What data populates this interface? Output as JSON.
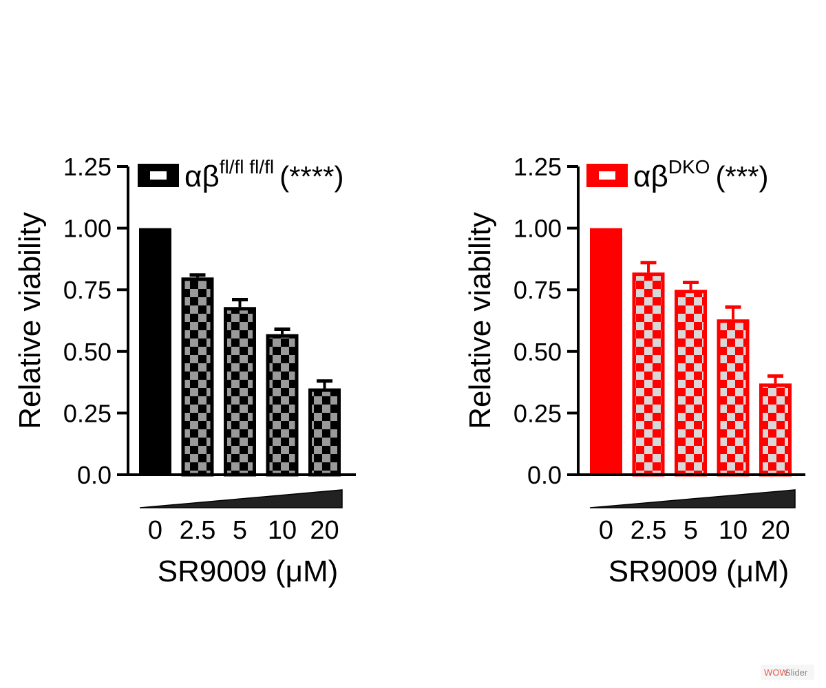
{
  "chart_data": [
    {
      "type": "bar",
      "legend": {
        "symbol": "αβ",
        "superscript": "fl/fl fl/fl",
        "significance": "(****)",
        "placement": "top"
      },
      "ylabel": "Relative viability",
      "xlabel": "SR9009 (μM)",
      "categories": [
        "0",
        "2.5",
        "5",
        "10",
        "20"
      ],
      "values": [
        1.0,
        0.8,
        0.68,
        0.57,
        0.35
      ],
      "errors": [
        0,
        0.01,
        0.03,
        0.02,
        0.03
      ],
      "ylim": [
        0,
        1.25
      ],
      "yticks": [
        0.0,
        0.25,
        0.5,
        0.75,
        1.0,
        1.25
      ],
      "ytick_labels": [
        "0.0",
        "0.25",
        "0.50",
        "0.75",
        "1.00",
        "1.25"
      ],
      "colors": {
        "main": "#000000",
        "check": "#9a9a9a"
      },
      "grid": false
    },
    {
      "type": "bar",
      "legend": {
        "symbol": "αβ",
        "superscript": "DKO",
        "significance": "(***)",
        "placement": "top"
      },
      "ylabel": "Relative viability",
      "xlabel": "SR9009 (μM)",
      "categories": [
        "0",
        "2.5",
        "5",
        "10",
        "20"
      ],
      "values": [
        1.0,
        0.82,
        0.75,
        0.63,
        0.37
      ],
      "errors": [
        0,
        0.04,
        0.03,
        0.05,
        0.03
      ],
      "ylim": [
        0,
        1.25
      ],
      "yticks": [
        0.0,
        0.25,
        0.5,
        0.75,
        1.0,
        1.25
      ],
      "ytick_labels": [
        "0.0",
        "0.25",
        "0.50",
        "0.75",
        "1.00",
        "1.25"
      ],
      "colors": {
        "main": "#ff0000",
        "check": "#d8d8d8"
      },
      "grid": false
    }
  ],
  "watermark": {
    "part1": "WOW",
    "part2": "Slider"
  }
}
